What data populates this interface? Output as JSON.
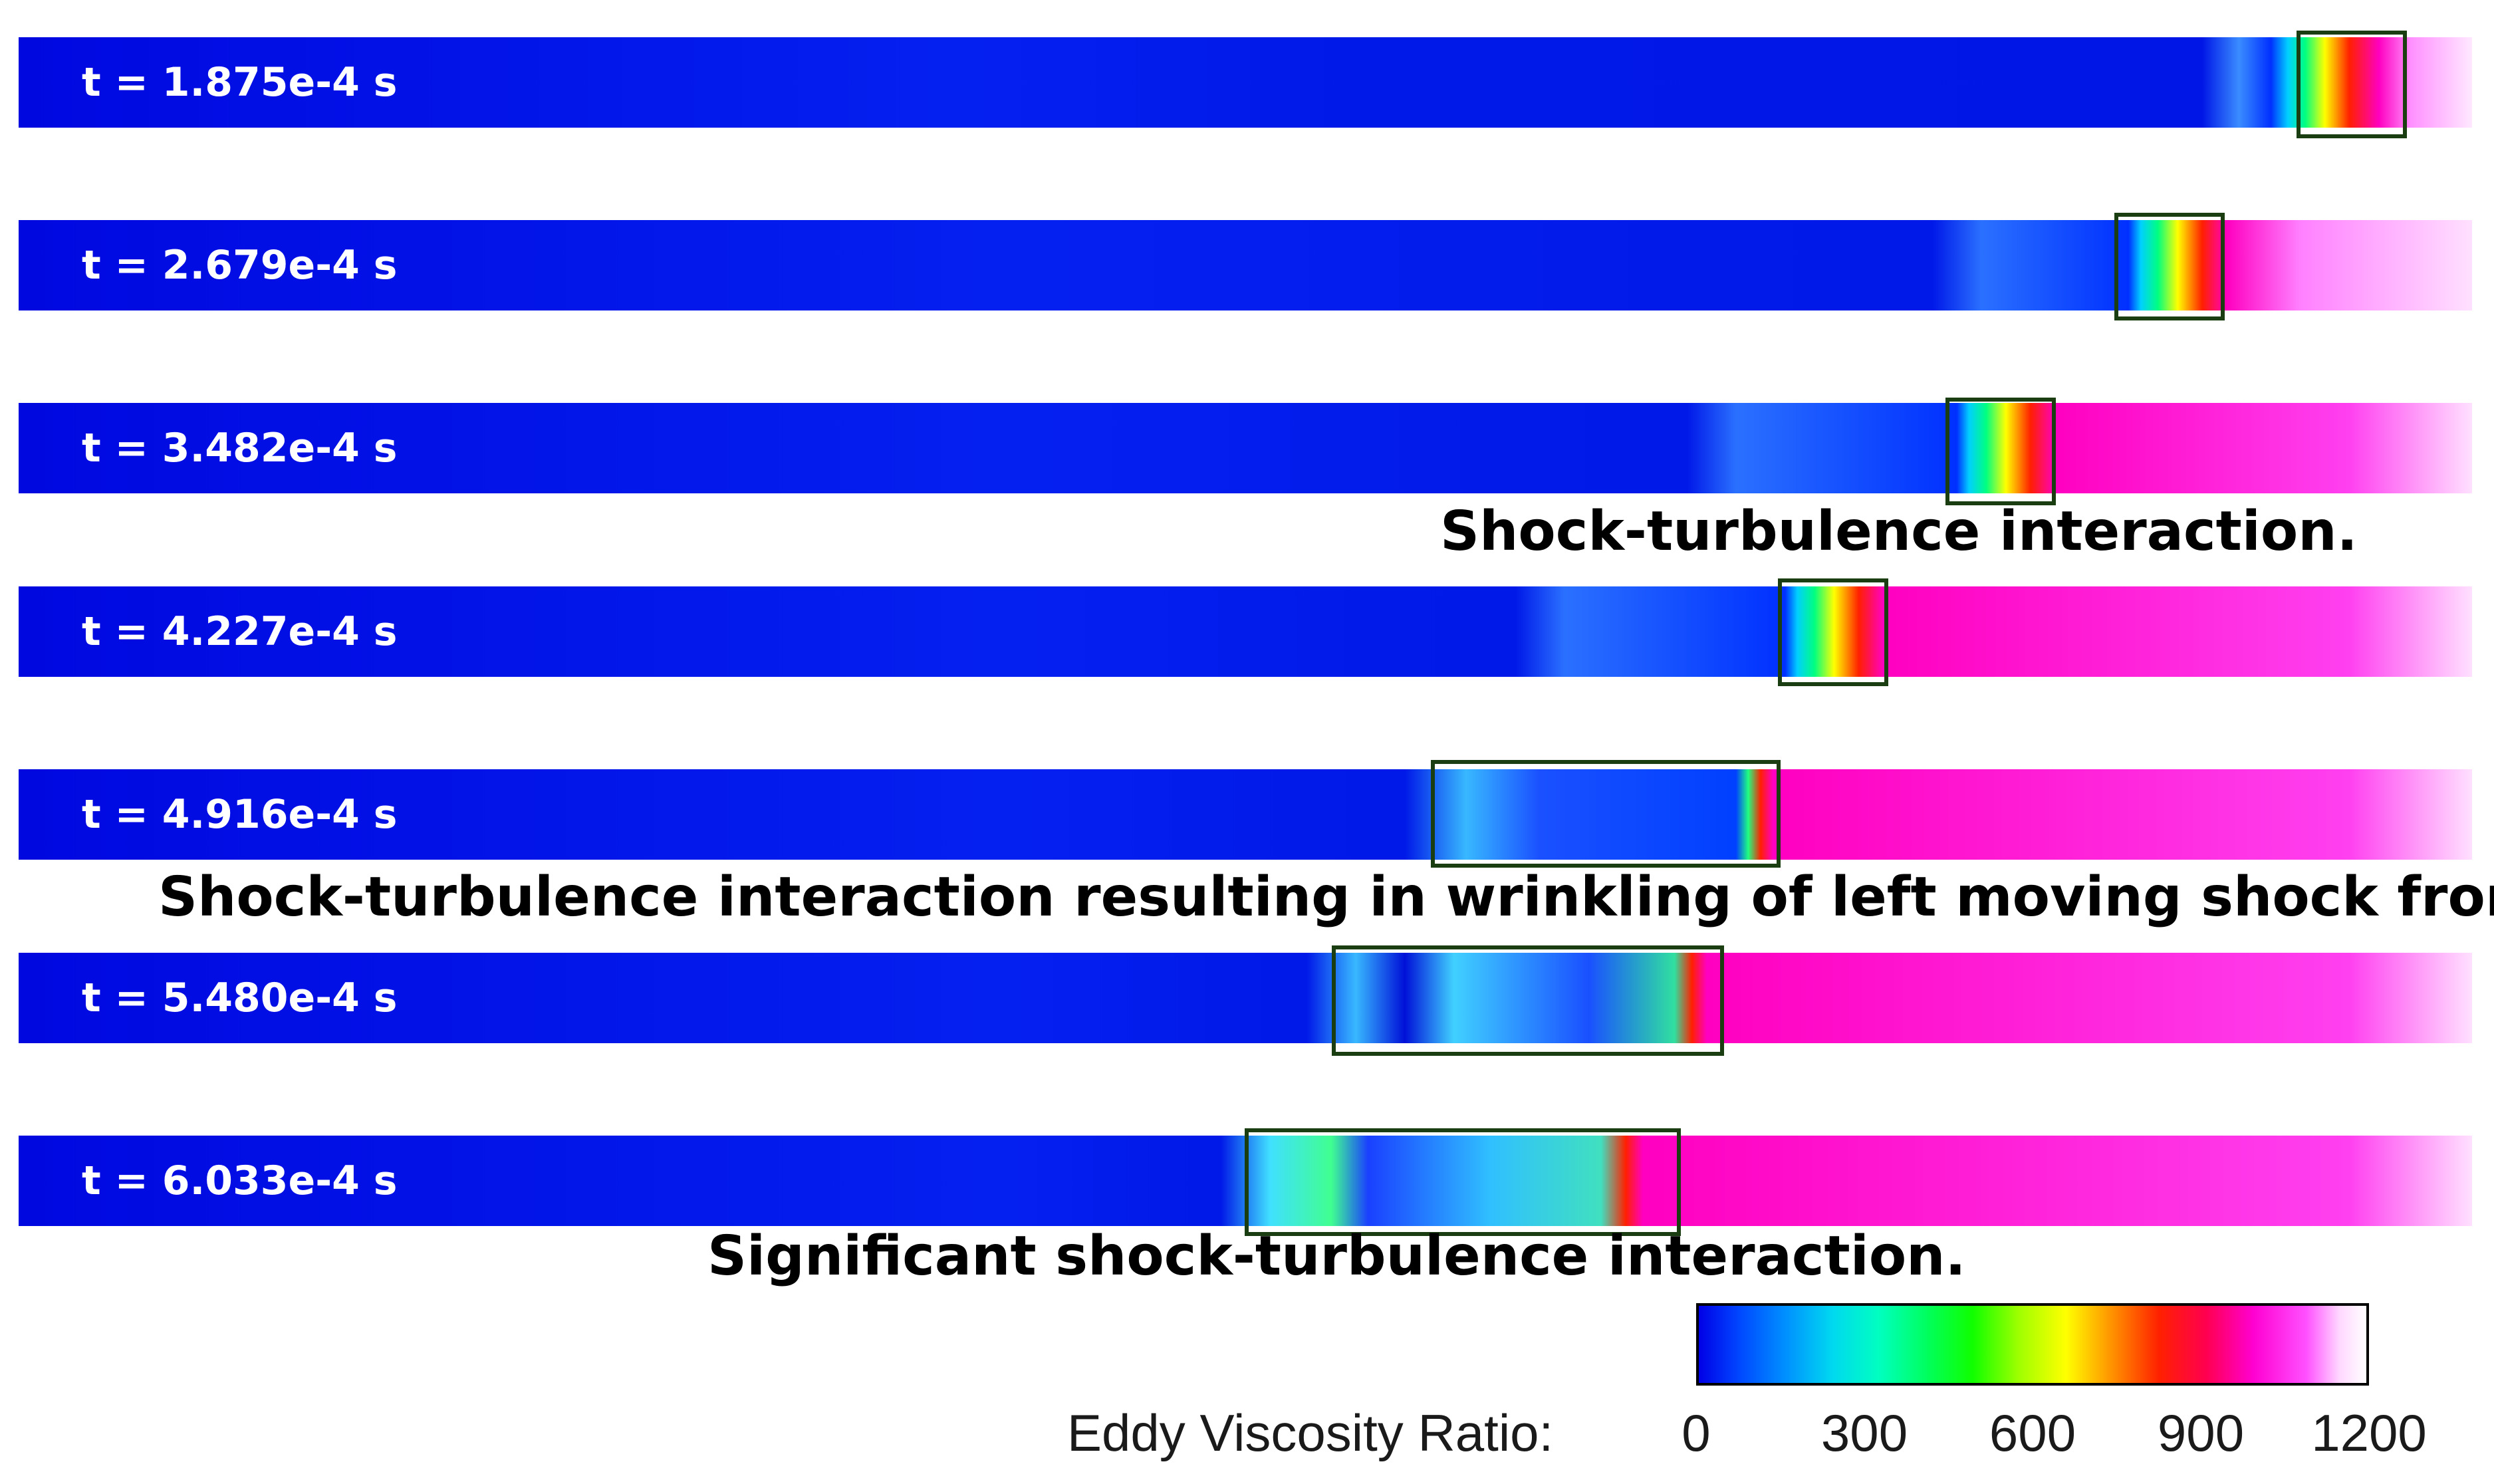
{
  "snapshots": [
    {
      "time_label": "t = 1.875e-4 s"
    },
    {
      "time_label": "t = 2.679e-4 s"
    },
    {
      "time_label": "t = 3.482e-4 s"
    },
    {
      "time_label": "t = 4.227e-4 s"
    },
    {
      "time_label": "t = 4.916e-4 s"
    },
    {
      "time_label": "t = 5.480e-4 s"
    },
    {
      "time_label": "t = 6.033e-4 s"
    }
  ],
  "annotations": {
    "after_snapshot_3": "Shock-turbulence interaction.",
    "after_snapshot_5": "Shock-turbulence interaction resulting in wrinkling of left moving shock front .",
    "after_snapshot_7": "Significant shock-turbulence interaction."
  },
  "colorbar": {
    "title": "Eddy Viscosity Ratio:",
    "ticks": [
      "0",
      "300",
      "600",
      "900",
      "1200"
    ],
    "range": [
      0,
      1200
    ],
    "colors": [
      "#0000e6",
      "#00d8f0",
      "#10ff00",
      "#ffff00",
      "#ff2000",
      "#ff00d0",
      "#ffffff"
    ]
  }
}
